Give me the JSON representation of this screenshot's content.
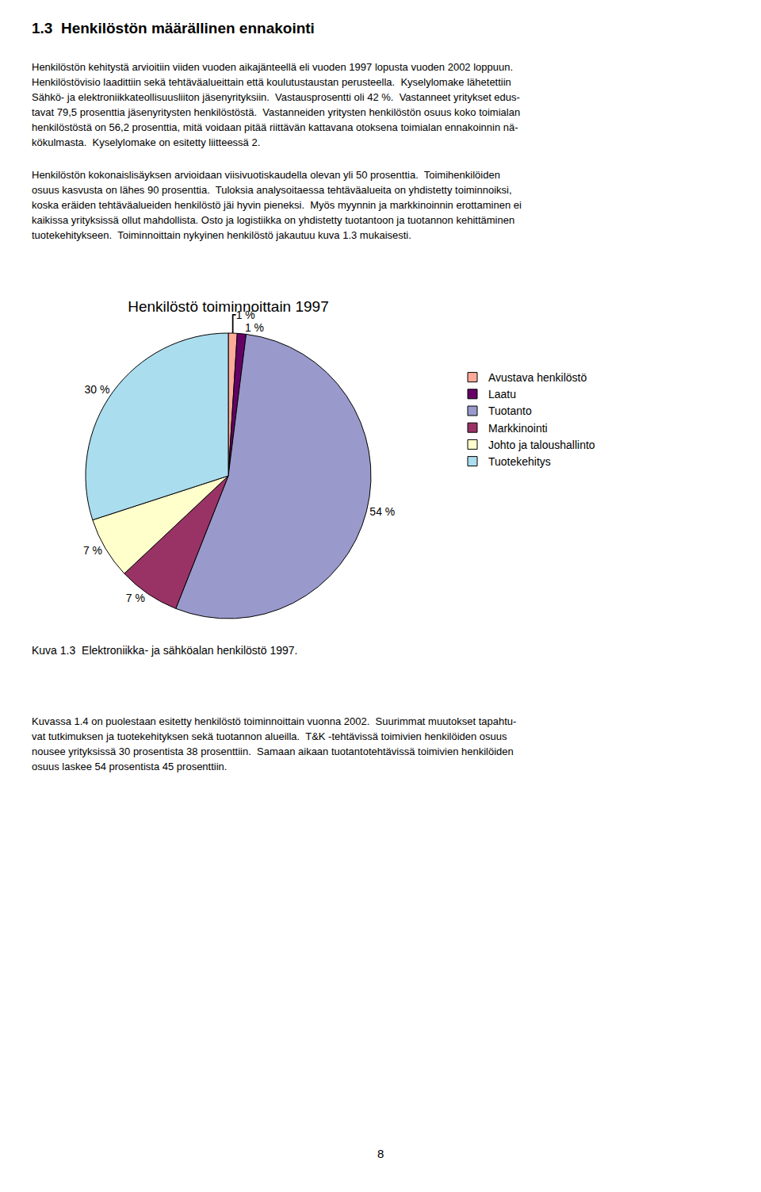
{
  "header": "1.3  Henkilöstön määrällinen ennakointi",
  "text_before": [
    [
      "Henkilöstön kehitystä arvioitiin viiden vuoden aikajänteellä eli vuoden 1997 lopusta vuoden 2002 loppuun.",
      "Henkilöstövisio laadittiin sekä tehtäväalueittain että koulutustaustan perusteella.  Kyselylomake lähetettiin",
      "Sähkö- ja elektroniikkateollisuusliiton jäsenyrityksiin.  Vastausprosentti oli 42 %.  Vastanneet yritykset edus-",
      "tavat 79,5 prosenttia jäsenyritysten henkilöstöstä.  Vastanneiden yritysten henkilöstön osuus koko toimialan",
      "henkilöstöstä on 56,2 prosenttia, mitä voidaan pitää riittävän kattavana otoksena toimialan ennakoinnin nä-",
      "kökulmasta.  Kyselylomake on esitetty liitteessä 2."
    ],
    [
      "Henkilöstön kokonaislisäyksen arvioidaan viisivuotiskaudella olevan yli 50 prosenttia.  Toimihenkilöiden",
      "osuus kasvusta on lähes 90 prosenttia.  Tuloksia analysoitaessa tehtäväalueita on yhdistetty toiminnoiksi,",
      "koska eräiden tehtäväalueiden henkilöstö jäi hyvin pieneksi.  Myös myynnin ja markkinoinnin erottaminen ei",
      "kaikissa yrityksissä ollut mahdollista. Osto ja logistiikka on yhdistetty tuotantoon ja tuotannon kehittäminen",
      "tuotekehitykseen.  Toiminnoittain nykyinen henkilöstö jakautuu kuva 1.3 mukaisesti."
    ]
  ],
  "chart_data": {
    "type": "pie",
    "title": "Henkilöstö toiminnoittain 1997",
    "categories": [
      "Avustava henkilöstö",
      "Laatu",
      "Tuotanto",
      "Markkinointi",
      "Johto ja taloushallinto",
      "Tuotekehitys"
    ],
    "values": [
      1,
      1,
      54,
      7,
      7,
      30
    ],
    "value_labels": [
      "1 %",
      "1 %",
      "54 %",
      "7 %",
      "7 %",
      "30 %"
    ],
    "colors": [
      "#ffaa99",
      "#660066",
      "#9999cc",
      "#993366",
      "#ffffcc",
      "#aaddee"
    ],
    "data_labels": true,
    "legend": "right"
  },
  "caption": "Kuva 1.3  Elektroniikka- ja sähköalan henkilöstö 1997.",
  "text_after": [
    [
      "Kuvassa 1.4 on puolestaan esitetty henkilöstö toiminnoittain vuonna 2002.  Suurimmat muutokset tapahtu-",
      "vat tutkimuksen ja tuotekehityksen sekä tuotannon alueilla.  T&K -tehtävissä toimivien henkilöiden osuus",
      "nousee yrityksissä 30 prosentista 38 prosenttiin.  Samaan aikaan tuotantotehtävissä toimivien henkilöiden",
      "osuus laskee 54 prosentista 45 prosenttiin."
    ]
  ],
  "page_number": "8"
}
